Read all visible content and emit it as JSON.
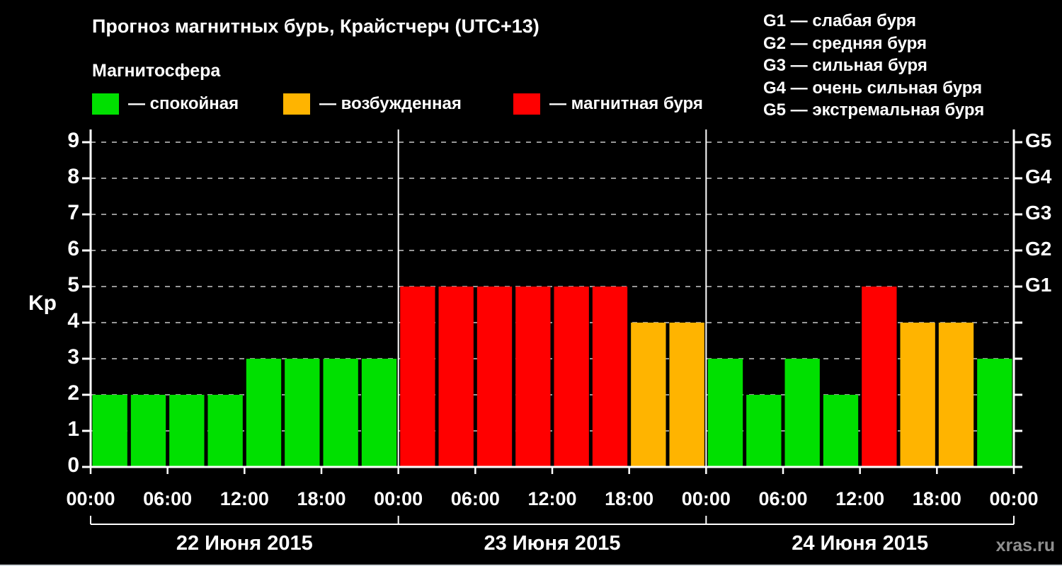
{
  "watermark": "xras.ru",
  "chart_data": {
    "type": "bar",
    "title": "Прогноз магнитных бурь, Крайстчерч (UTC+13)",
    "subtitle": "Магнитосфера",
    "xlabel": "",
    "ylabel": "Kp",
    "ylim": [
      0,
      9
    ],
    "y_ticks": [
      0,
      1,
      2,
      3,
      4,
      5,
      6,
      7,
      8,
      9
    ],
    "grid": "horizontal-dashed",
    "legend_position": "top-left",
    "legend": [
      {
        "label": "— спокойная",
        "status": "quiet",
        "color": "#00e000"
      },
      {
        "label": "— возбужденная",
        "status": "excited",
        "color": "#ffb400"
      },
      {
        "label": "— магнитная буря",
        "status": "storm",
        "color": "#ff0000"
      }
    ],
    "g_scale_legend": [
      "G1 — слабая буря",
      "G2 — средняя буря",
      "G3 — сильная буря",
      "G4 — очень сильная буря",
      "G5 — экстремальная буря"
    ],
    "right_axis": {
      "values": [
        5,
        6,
        7,
        8,
        9
      ],
      "labels": [
        "G1",
        "G2",
        "G3",
        "G4",
        "G5"
      ]
    },
    "x_tick_labels": [
      "00:00",
      "06:00",
      "12:00",
      "18:00",
      "00:00",
      "06:00",
      "12:00",
      "18:00",
      "00:00",
      "06:00",
      "12:00",
      "18:00",
      "00:00"
    ],
    "hours_per_bar": 3,
    "status_colors": {
      "quiet": "#00e000",
      "excited": "#ffb400",
      "storm": "#ff0000"
    },
    "days": [
      {
        "date": "22 Июня 2015",
        "values": [
          2,
          2,
          2,
          2,
          3,
          3,
          3,
          3
        ],
        "statuses": [
          "quiet",
          "quiet",
          "quiet",
          "quiet",
          "quiet",
          "quiet",
          "quiet",
          "quiet"
        ]
      },
      {
        "date": "23 Июня 2015",
        "values": [
          5,
          5,
          5,
          5,
          5,
          5,
          4,
          4
        ],
        "statuses": [
          "storm",
          "storm",
          "storm",
          "storm",
          "storm",
          "storm",
          "excited",
          "excited"
        ]
      },
      {
        "date": "24 Июня 2015",
        "values": [
          3,
          2,
          3,
          2,
          5,
          4,
          4,
          3
        ],
        "statuses": [
          "quiet",
          "quiet",
          "quiet",
          "quiet",
          "storm",
          "excited",
          "excited",
          "quiet"
        ]
      }
    ]
  }
}
